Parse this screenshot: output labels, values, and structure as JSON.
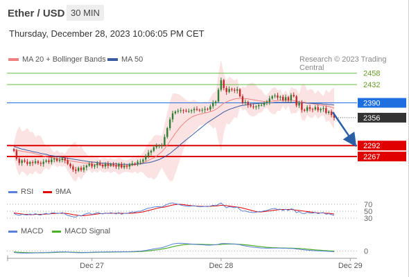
{
  "header": {
    "pair": "Ether / USD",
    "interval": "30 MIN"
  },
  "datetime": "Thursday, December 28, 2023 10:06:05 PM CET",
  "legend": {
    "ma20": {
      "label": "MA 20 + Bollinger Bands",
      "color": "#f08080"
    },
    "ma50": {
      "label": "MA 50",
      "color": "#3a5ba0"
    },
    "credit": "Research © 2023 Trading Central"
  },
  "rsi_legend": {
    "rsi": "RSI",
    "ma9": "9MA"
  },
  "macd_legend": {
    "macd": "MACD",
    "signal": "MACD Signal"
  },
  "colors": {
    "up": "#2e7d32",
    "down": "#c62828",
    "blue_level": "#1e6fe0",
    "red_level": "#e00000",
    "green_level": "#66bb44",
    "current": "#333333"
  },
  "chart_data": {
    "type": "candlestick",
    "ylim": [
      2205,
      2475
    ],
    "x_ticks": [
      {
        "label": "Dec 27",
        "index": 29
      },
      {
        "label": "Dec 28",
        "index": 77
      },
      {
        "label": "Dec 29",
        "index": 125
      }
    ],
    "levels": [
      {
        "value": 2458,
        "label": "2458",
        "kind": "resistance"
      },
      {
        "value": 2432,
        "label": "2432",
        "kind": "resistance"
      },
      {
        "value": 2390,
        "label": "2390",
        "kind": "pivot"
      },
      {
        "value": 2356,
        "label": "2356",
        "kind": "current"
      },
      {
        "value": 2292,
        "label": "2292",
        "kind": "support"
      },
      {
        "value": 2267,
        "label": "2267",
        "kind": "support"
      }
    ],
    "close": [
      2280,
      2262,
      2252,
      2258,
      2255,
      2250,
      2254,
      2252,
      2256,
      2252,
      2250,
      2255,
      2258,
      2254,
      2260,
      2262,
      2257,
      2259,
      2263,
      2258,
      2250,
      2244,
      2237,
      2234,
      2241,
      2236,
      2242,
      2246,
      2250,
      2244,
      2247,
      2252,
      2248,
      2244,
      2250,
      2246,
      2250,
      2247,
      2244,
      2250,
      2242,
      2246,
      2244,
      2248,
      2251,
      2250,
      2255,
      2255,
      2260,
      2268,
      2276,
      2280,
      2288,
      2291,
      2292,
      2293,
      2312,
      2332,
      2352,
      2366,
      2370,
      2372,
      2373,
      2372,
      2371,
      2371,
      2373,
      2376,
      2374,
      2373,
      2374,
      2376,
      2375,
      2382,
      2390,
      2393,
      2420,
      2442,
      2424,
      2415,
      2422,
      2420,
      2418,
      2421,
      2405,
      2390,
      2392,
      2385,
      2382,
      2380,
      2382,
      2385,
      2385,
      2390,
      2392,
      2400,
      2405,
      2407,
      2402,
      2404,
      2396,
      2403,
      2396,
      2408,
      2405,
      2384,
      2390,
      2374,
      2372,
      2380,
      2376,
      2375,
      2380,
      2373,
      2376,
      2378,
      2367,
      2370,
      2362,
      2356
    ],
    "series": [
      {
        "name": "MA 20",
        "values": [
          2282,
          2281,
          2280,
          2279,
          2278,
          2277,
          2276,
          2275,
          2273,
          2272,
          2270,
          2268,
          2266,
          2265,
          2264,
          2263,
          2262,
          2261,
          2260,
          2259,
          2258,
          2257,
          2256,
          2255,
          2254,
          2253,
          2252,
          2252,
          2251,
          2250,
          2249,
          2248,
          2248,
          2247,
          2247,
          2247,
          2246,
          2246,
          2246,
          2245,
          2245,
          2245,
          2245,
          2246,
          2247,
          2248,
          2249,
          2251,
          2253,
          2255,
          2258,
          2261,
          2264,
          2268,
          2273,
          2278,
          2285,
          2293,
          2302,
          2311,
          2320,
          2328,
          2336,
          2342,
          2348,
          2353,
          2357,
          2360,
          2362,
          2364,
          2365,
          2367,
          2368,
          2370,
          2372,
          2375,
          2379,
          2384,
          2389,
          2392,
          2395,
          2397,
          2399,
          2400,
          2400,
          2400,
          2400,
          2399,
          2398,
          2397,
          2396,
          2395,
          2394,
          2393,
          2393,
          2393,
          2394,
          2395,
          2395,
          2396,
          2396,
          2396,
          2396,
          2396,
          2395,
          2394,
          2393,
          2392,
          2391,
          2390,
          2389,
          2388,
          2387,
          2386,
          2385,
          2384,
          2383,
          2382,
          2380,
          2378
        ]
      },
      {
        "name": "MA 50",
        "values": [
          2290,
          2288,
          2286,
          2284,
          2283,
          2281,
          2280,
          2278,
          2277,
          2276,
          2274,
          2273,
          2272,
          2270,
          2269,
          2268,
          2267,
          2266,
          2265,
          2264,
          2263,
          2262,
          2261,
          2260,
          2259,
          2258,
          2257,
          2256,
          2255,
          2254,
          2254,
          2253,
          2252,
          2252,
          2251,
          2251,
          2250,
          2250,
          2250,
          2249,
          2249,
          2249,
          2249,
          2249,
          2249,
          2249,
          2250,
          2250,
          2251,
          2252,
          2253,
          2254,
          2256,
          2258,
          2260,
          2263,
          2266,
          2270,
          2274,
          2279,
          2284,
          2289,
          2295,
          2300,
          2305,
          2310,
          2315,
          2320,
          2325,
          2330,
          2335,
          2340,
          2345,
          2349,
          2353,
          2357,
          2361,
          2365,
          2369,
          2372,
          2375,
          2377,
          2379,
          2381,
          2383,
          2384,
          2385,
          2386,
          2387,
          2388,
          2388,
          2389,
          2389,
          2389,
          2390,
          2390,
          2390,
          2391,
          2391,
          2391,
          2391,
          2391,
          2391,
          2391,
          2391,
          2391,
          2390,
          2390,
          2390,
          2389,
          2389,
          2389,
          2388,
          2388,
          2388,
          2387,
          2387,
          2386,
          2386,
          2385
        ]
      }
    ],
    "rsi": {
      "name": "RSI",
      "ylim": [
        20,
        80
      ],
      "ticks": [
        {
          "value": 70,
          "label": "70"
        },
        {
          "value": 50,
          "label": "50"
        },
        {
          "value": 30,
          "label": "30"
        }
      ],
      "values": [
        44,
        40,
        38,
        41,
        40,
        39,
        42,
        40,
        43,
        40,
        39,
        42,
        44,
        41,
        45,
        46,
        43,
        44,
        46,
        42,
        38,
        36,
        34,
        33,
        38,
        36,
        40,
        43,
        45,
        41,
        43,
        46,
        44,
        42,
        45,
        43,
        46,
        44,
        42,
        46,
        41,
        44,
        43,
        46,
        48,
        47,
        50,
        50,
        53,
        56,
        59,
        60,
        62,
        63,
        63,
        62,
        66,
        70,
        73,
        74,
        72,
        70,
        68,
        66,
        65,
        64,
        65,
        66,
        64,
        63,
        63,
        64,
        63,
        65,
        67,
        66,
        70,
        74,
        66,
        60,
        63,
        62,
        60,
        62,
        55,
        50,
        51,
        48,
        47,
        46,
        47,
        49,
        49,
        51,
        52,
        55,
        57,
        58,
        55,
        56,
        52,
        56,
        52,
        57,
        55,
        46,
        49,
        44,
        43,
        47,
        45,
        44,
        47,
        43,
        45,
        46,
        41,
        43,
        40,
        38
      ]
    },
    "rsi_ma9": {
      "name": "9MA",
      "values": [
        45,
        44,
        43,
        42,
        41,
        41,
        40,
        40,
        41,
        41,
        41,
        41,
        42,
        42,
        43,
        43,
        44,
        44,
        44,
        44,
        43,
        42,
        40,
        39,
        38,
        37,
        37,
        38,
        39,
        40,
        41,
        42,
        43,
        43,
        44,
        44,
        44,
        44,
        44,
        44,
        44,
        44,
        44,
        44,
        44,
        45,
        46,
        47,
        48,
        50,
        52,
        54,
        56,
        58,
        60,
        61,
        62,
        64,
        66,
        68,
        69,
        70,
        70,
        69,
        68,
        67,
        66,
        65,
        65,
        64,
        64,
        64,
        64,
        64,
        65,
        65,
        66,
        67,
        67,
        66,
        65,
        64,
        63,
        62,
        61,
        59,
        57,
        55,
        53,
        51,
        49,
        48,
        48,
        49,
        50,
        51,
        52,
        53,
        54,
        55,
        55,
        55,
        55,
        55,
        54,
        53,
        52,
        51,
        50,
        49,
        48,
        47,
        46,
        45,
        45,
        45,
        44,
        44,
        43,
        42
      ]
    },
    "macd": {
      "name": "MACD",
      "ylim": [
        -14,
        26
      ],
      "ticks": [
        {
          "value": 0,
          "label": "0"
        }
      ],
      "values": [
        -3,
        -3.5,
        -4,
        -4.2,
        -4.3,
        -4.3,
        -4.2,
        -4,
        -3.8,
        -3.6,
        -3.4,
        -3.2,
        -3,
        -2.8,
        -2.5,
        -2.2,
        -2,
        -1.8,
        -1.7,
        -1.7,
        -2,
        -2.5,
        -3,
        -3.4,
        -3.5,
        -3.5,
        -3.3,
        -3,
        -2.7,
        -2.5,
        -2.3,
        -2.1,
        -2,
        -2,
        -1.9,
        -1.8,
        -1.7,
        -1.6,
        -1.6,
        -1.5,
        -1.6,
        -1.6,
        -1.5,
        -1.3,
        -1,
        -0.8,
        -0.4,
        0,
        0.6,
        1.4,
        2.4,
        3.4,
        4.5,
        5.5,
        6.5,
        7.4,
        9,
        11,
        13,
        15,
        16,
        16.5,
        16.6,
        16.4,
        16,
        15.5,
        15,
        14.6,
        14.2,
        13.8,
        13.4,
        13,
        12.6,
        12.6,
        13,
        13.4,
        14.6,
        16,
        16.2,
        16,
        15.8,
        15.4,
        15,
        14.6,
        13.5,
        12,
        11,
        10,
        9,
        8.2,
        7.6,
        7,
        6.6,
        6.4,
        6.2,
        6.2,
        6.3,
        6.4,
        6.3,
        6.3,
        6,
        6,
        5.6,
        5.6,
        5.4,
        4.4,
        4,
        3.2,
        2.4,
        2,
        1.5,
        1,
        0.8,
        0.4,
        0.2,
        0,
        -0.4,
        -0.6,
        -1,
        -1.4
      ]
    },
    "macd_signal": {
      "name": "MACD Signal",
      "values": [
        -2,
        -2.3,
        -2.6,
        -2.9,
        -3.2,
        -3.4,
        -3.6,
        -3.7,
        -3.7,
        -3.7,
        -3.6,
        -3.5,
        -3.4,
        -3.3,
        -3.1,
        -2.9,
        -2.7,
        -2.5,
        -2.3,
        -2.2,
        -2.2,
        -2.3,
        -2.4,
        -2.6,
        -2.8,
        -3,
        -3.1,
        -3.1,
        -3,
        -2.9,
        -2.8,
        -2.6,
        -2.5,
        -2.4,
        -2.3,
        -2.2,
        -2.1,
        -2,
        -1.9,
        -1.8,
        -1.8,
        -1.7,
        -1.7,
        -1.6,
        -1.5,
        -1.4,
        -1.2,
        -1,
        -0.6,
        -0.2,
        0.4,
        1,
        1.8,
        2.6,
        3.4,
        4.3,
        5.3,
        6.5,
        7.8,
        9.2,
        10.5,
        11.7,
        12.7,
        13.5,
        14.1,
        14.5,
        14.7,
        14.8,
        14.8,
        14.6,
        14.4,
        14.2,
        14,
        13.8,
        13.7,
        13.7,
        13.8,
        14.2,
        14.6,
        14.9,
        15.1,
        15.1,
        15,
        14.8,
        14.5,
        14,
        13.4,
        12.8,
        12,
        11.3,
        10.6,
        9.9,
        9.2,
        8.6,
        8.1,
        7.7,
        7.4,
        7.2,
        7,
        6.8,
        6.6,
        6.5,
        6.3,
        6.2,
        6,
        5.7,
        5.4,
        5,
        4.6,
        4.1,
        3.6,
        3.1,
        2.6,
        2.1,
        1.7,
        1.3,
        0.9,
        0.5,
        0.2,
        -0.2
      ]
    }
  }
}
